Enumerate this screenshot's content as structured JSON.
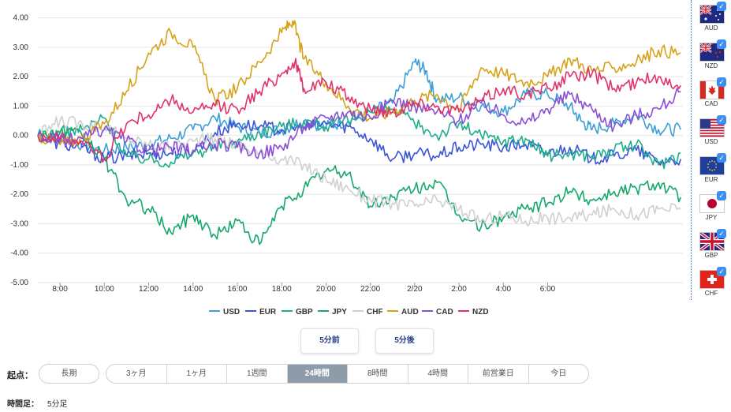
{
  "chart_data": {
    "type": "line",
    "title": "",
    "xlabel": "",
    "ylabel": "",
    "ylim": [
      -5.0,
      4.5
    ],
    "yticks": [
      "4.00",
      "3.00",
      "2.00",
      "1.00",
      "0.00",
      "-1.00",
      "-2.00",
      "-3.00",
      "-4.00",
      "-5.00"
    ],
    "ytick_values": [
      4,
      3,
      2,
      1,
      0,
      -1,
      -2,
      -3,
      -4,
      -5
    ],
    "x_range_hours": [
      0,
      29.1
    ],
    "xtick_labels": [
      "8:00",
      "10:00",
      "12:00",
      "14:00",
      "16:00",
      "18:00",
      "20:00",
      "22:00",
      "2/20",
      "2:00",
      "4:00",
      "6:00"
    ],
    "xtick_hours": [
      1,
      3,
      5,
      7,
      9,
      11,
      13,
      15,
      17,
      19,
      21,
      23
    ],
    "series": [
      {
        "name": "USD",
        "color": "#3d9ed8",
        "points": [
          [
            0,
            0
          ],
          [
            1,
            -0.1
          ],
          [
            2,
            -0.3
          ],
          [
            3,
            -0.5
          ],
          [
            4,
            -0.4
          ],
          [
            5,
            -0.3
          ],
          [
            6,
            -0.1
          ],
          [
            7,
            0.2
          ],
          [
            8,
            0.6
          ],
          [
            9,
            0.3
          ],
          [
            10,
            0.1
          ],
          [
            11,
            0.2
          ],
          [
            12,
            0.5
          ],
          [
            13,
            0.3
          ],
          [
            14,
            0.5
          ],
          [
            15,
            0.8
          ],
          [
            16,
            1.1
          ],
          [
            17,
            2.5
          ],
          [
            17.5,
            2.2
          ],
          [
            18,
            1.2
          ],
          [
            19,
            1.3
          ],
          [
            20,
            1.0
          ],
          [
            21,
            0.8
          ],
          [
            22,
            1.4
          ],
          [
            23,
            1.4
          ],
          [
            24,
            1.0
          ],
          [
            24.5,
            0.5
          ],
          [
            25,
            0.2
          ],
          [
            26,
            0.4
          ],
          [
            27,
            0.7
          ],
          [
            28,
            0.2
          ],
          [
            29,
            0.2
          ]
        ]
      },
      {
        "name": "EUR",
        "color": "#3b55d9",
        "points": [
          [
            0,
            0
          ],
          [
            1,
            -0.3
          ],
          [
            2,
            -0.4
          ],
          [
            3,
            -0.8
          ],
          [
            4,
            -0.7
          ],
          [
            5,
            -0.6
          ],
          [
            6,
            -0.6
          ],
          [
            7,
            -0.5
          ],
          [
            8,
            0.1
          ],
          [
            9,
            0.4
          ],
          [
            10,
            0.3
          ],
          [
            11,
            0.2
          ],
          [
            12,
            0.3
          ],
          [
            13,
            0.4
          ],
          [
            14,
            0.3
          ],
          [
            15,
            -0.1
          ],
          [
            16,
            -0.8
          ],
          [
            17,
            -0.6
          ],
          [
            18,
            -0.7
          ],
          [
            19,
            -0.4
          ],
          [
            20,
            -0.3
          ],
          [
            21,
            -0.4
          ],
          [
            22,
            -0.3
          ],
          [
            23,
            -0.6
          ],
          [
            24,
            -0.4
          ],
          [
            25,
            -0.8
          ],
          [
            26,
            -0.7
          ],
          [
            27,
            -0.5
          ],
          [
            28,
            -0.9
          ],
          [
            29,
            -0.8
          ]
        ]
      },
      {
        "name": "GBP",
        "color": "#1fae8c",
        "points": [
          [
            0,
            0
          ],
          [
            1,
            0.1
          ],
          [
            2,
            0.2
          ],
          [
            3,
            0.6
          ],
          [
            4,
            -0.7
          ],
          [
            5,
            -0.8
          ],
          [
            6,
            -0.9
          ],
          [
            7,
            -0.6
          ],
          [
            8,
            -0.4
          ],
          [
            9,
            -0.2
          ],
          [
            10,
            0.1
          ],
          [
            11,
            0.3
          ],
          [
            12,
            0.5
          ],
          [
            13,
            0.3
          ],
          [
            14,
            0.5
          ],
          [
            15,
            0.8
          ],
          [
            16,
            0.9
          ],
          [
            17,
            0.4
          ],
          [
            18,
            0.0
          ],
          [
            19,
            0.4
          ],
          [
            20,
            0.0
          ],
          [
            21,
            -0.2
          ],
          [
            22,
            -0.1
          ],
          [
            23,
            -0.7
          ],
          [
            24,
            -0.6
          ],
          [
            25,
            -0.7
          ],
          [
            26,
            -0.5
          ],
          [
            27,
            -0.3
          ],
          [
            28,
            -1.0
          ],
          [
            29,
            -0.6
          ]
        ]
      },
      {
        "name": "JPY",
        "color": "#17a86c",
        "points": [
          [
            0,
            0
          ],
          [
            1,
            0.1
          ],
          [
            2,
            0.0
          ],
          [
            3,
            -0.8
          ],
          [
            4,
            -2.2
          ],
          [
            5,
            -2.5
          ],
          [
            6,
            -3.3
          ],
          [
            7,
            -2.7
          ],
          [
            8,
            -3.4
          ],
          [
            9,
            -2.9
          ],
          [
            10,
            -3.7
          ],
          [
            11,
            -2.4
          ],
          [
            12,
            -1.8
          ],
          [
            13,
            -1.2
          ],
          [
            14,
            -1.3
          ],
          [
            15,
            -2.4
          ],
          [
            16,
            -2.1
          ],
          [
            17,
            -1.8
          ],
          [
            18,
            -1.6
          ],
          [
            19,
            -2.7
          ],
          [
            20,
            -3.1
          ],
          [
            21,
            -2.8
          ],
          [
            22,
            -2.5
          ],
          [
            23,
            -2.3
          ],
          [
            24,
            -1.9
          ],
          [
            25,
            -2.2
          ],
          [
            26,
            -1.9
          ],
          [
            27,
            -1.8
          ],
          [
            28,
            -1.6
          ],
          [
            29,
            -2.1
          ]
        ]
      },
      {
        "name": "CHF",
        "color": "#d0d0d0",
        "points": [
          [
            0,
            0
          ],
          [
            1,
            0.5
          ],
          [
            2,
            0.4
          ],
          [
            3,
            0.3
          ],
          [
            4,
            -0.1
          ],
          [
            5,
            -0.3
          ],
          [
            6,
            -0.4
          ],
          [
            7,
            -0.2
          ],
          [
            8,
            -0.1
          ],
          [
            9,
            -0.3
          ],
          [
            10,
            -0.6
          ],
          [
            11,
            -0.8
          ],
          [
            12,
            -1.0
          ],
          [
            13,
            -1.5
          ],
          [
            14,
            -1.8
          ],
          [
            15,
            -2.2
          ],
          [
            16,
            -2.3
          ],
          [
            17,
            -2.4
          ],
          [
            18,
            -2.2
          ],
          [
            19,
            -2.5
          ],
          [
            20,
            -2.9
          ],
          [
            21,
            -2.7
          ],
          [
            22,
            -2.9
          ],
          [
            23,
            -2.8
          ],
          [
            24,
            -2.8
          ],
          [
            25,
            -2.7
          ],
          [
            26,
            -2.5
          ],
          [
            27,
            -2.7
          ],
          [
            28,
            -2.5
          ],
          [
            29,
            -2.5
          ]
        ]
      },
      {
        "name": "AUD",
        "color": "#d6a21a",
        "points": [
          [
            0,
            0
          ],
          [
            1,
            -0.3
          ],
          [
            2,
            -0.1
          ],
          [
            3,
            0.4
          ],
          [
            4,
            1.5
          ],
          [
            5,
            2.8
          ],
          [
            6,
            3.5
          ],
          [
            7,
            3.0
          ],
          [
            8,
            1.2
          ],
          [
            9,
            1.6
          ],
          [
            10,
            2.5
          ],
          [
            11,
            3.5
          ],
          [
            11.5,
            3.9
          ],
          [
            12,
            2.6
          ],
          [
            13,
            1.8
          ],
          [
            14,
            1.0
          ],
          [
            15,
            0.6
          ],
          [
            16,
            0.8
          ],
          [
            17,
            1.2
          ],
          [
            18,
            1.4
          ],
          [
            19,
            0.9
          ],
          [
            20,
            2.3
          ],
          [
            21,
            2.1
          ],
          [
            22,
            1.8
          ],
          [
            23,
            2.0
          ],
          [
            24,
            2.6
          ],
          [
            25,
            2.2
          ],
          [
            26,
            2.3
          ],
          [
            27,
            2.5
          ],
          [
            28,
            2.9
          ],
          [
            29,
            2.8
          ]
        ]
      },
      {
        "name": "CAD",
        "color": "#8b4fd6",
        "points": [
          [
            0,
            0
          ],
          [
            1,
            -0.2
          ],
          [
            2,
            -0.1
          ],
          [
            3,
            0.2
          ],
          [
            4,
            -0.2
          ],
          [
            5,
            -0.5
          ],
          [
            6,
            -0.4
          ],
          [
            7,
            -0.5
          ],
          [
            8,
            -0.3
          ],
          [
            9,
            -0.4
          ],
          [
            10,
            -0.6
          ],
          [
            11,
            -0.4
          ],
          [
            12,
            0.3
          ],
          [
            13,
            0.6
          ],
          [
            14,
            0.8
          ],
          [
            15,
            0.6
          ],
          [
            16,
            1.2
          ],
          [
            17,
            1.0
          ],
          [
            18,
            0.8
          ],
          [
            19,
            0.5
          ],
          [
            20,
            1.1
          ],
          [
            21,
            0.7
          ],
          [
            22,
            0.4
          ],
          [
            23,
            0.9
          ],
          [
            24,
            1.4
          ],
          [
            25,
            0.9
          ],
          [
            26,
            0.3
          ],
          [
            27,
            0.7
          ],
          [
            28,
            0.9
          ],
          [
            29,
            1.5
          ]
        ]
      },
      {
        "name": "NZD",
        "color": "#e0336a",
        "points": [
          [
            0,
            0
          ],
          [
            1,
            -0.1
          ],
          [
            2,
            -0.2
          ],
          [
            3,
            -0.8
          ],
          [
            4,
            0.4
          ],
          [
            5,
            0.7
          ],
          [
            6,
            1.2
          ],
          [
            7,
            0.8
          ],
          [
            8,
            1.0
          ],
          [
            9,
            0.9
          ],
          [
            10,
            1.5
          ],
          [
            11,
            2.1
          ],
          [
            11.6,
            2.5
          ],
          [
            12,
            1.6
          ],
          [
            13,
            1.8
          ],
          [
            14,
            1.3
          ],
          [
            15,
            0.9
          ],
          [
            16,
            0.8
          ],
          [
            17,
            1.1
          ],
          [
            18,
            1.0
          ],
          [
            19,
            0.8
          ],
          [
            20,
            1.2
          ],
          [
            21,
            1.6
          ],
          [
            22,
            1.4
          ],
          [
            23,
            1.6
          ],
          [
            24,
            2.0
          ],
          [
            25,
            2.1
          ],
          [
            26,
            1.6
          ],
          [
            27,
            1.8
          ],
          [
            28,
            2.0
          ],
          [
            29,
            1.7
          ]
        ]
      }
    ]
  },
  "flags": [
    {
      "code": "AUD"
    },
    {
      "code": "NZD"
    },
    {
      "code": "CAD"
    },
    {
      "code": "USD"
    },
    {
      "code": "EUR"
    },
    {
      "code": "JPY"
    },
    {
      "code": "GBP"
    },
    {
      "code": "CHF"
    }
  ],
  "check_glyph": "✓",
  "buttons": {
    "prev": "5分前",
    "next": "5分後"
  },
  "range": {
    "label": "起点：",
    "long": "長期",
    "options": [
      "3ヶ月",
      "1ヶ月",
      "1週間",
      "24時間",
      "8時間",
      "4時間",
      "前営業日",
      "今日"
    ],
    "active": "24時間"
  },
  "interval": {
    "label": "時間足：",
    "value": "5分足"
  }
}
